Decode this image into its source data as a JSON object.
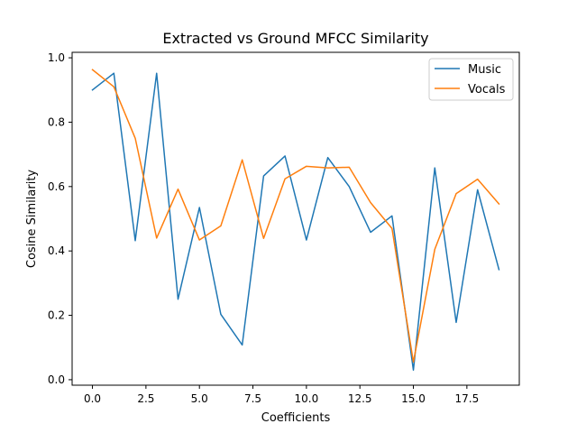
{
  "chart_data": {
    "type": "line",
    "title": "Extracted vs Ground MFCC Similarity",
    "xlabel": "Coefficients",
    "ylabel": "Cosine Similarity",
    "xlim": [
      -0.95,
      19.95
    ],
    "ylim": [
      -0.017,
      1.017
    ],
    "xticks": [
      0,
      2.5,
      5,
      7.5,
      10,
      12.5,
      15,
      17.5
    ],
    "xtick_labels": [
      "0.0",
      "2.5",
      "5.0",
      "7.5",
      "10.0",
      "12.5",
      "15.0",
      "17.5"
    ],
    "yticks": [
      0.0,
      0.2,
      0.4,
      0.6,
      0.8,
      1.0
    ],
    "ytick_labels": [
      "0.0",
      "0.2",
      "0.4",
      "0.6",
      "0.8",
      "1.0"
    ],
    "grid": false,
    "legend_position": "upper right",
    "x": [
      0,
      1,
      2,
      3,
      4,
      5,
      6,
      7,
      8,
      9,
      10,
      11,
      12,
      13,
      14,
      15,
      16,
      17,
      18,
      19
    ],
    "series": [
      {
        "name": "Music",
        "color": "#1f77b4",
        "values": [
          0.9,
          0.952,
          0.432,
          0.952,
          0.25,
          0.535,
          0.203,
          0.108,
          0.633,
          0.695,
          0.434,
          0.69,
          0.6,
          0.458,
          0.509,
          0.03,
          0.658,
          0.178,
          0.59,
          0.342
        ]
      },
      {
        "name": "Vocals",
        "color": "#ff7f0e",
        "values": [
          0.963,
          0.91,
          0.75,
          0.44,
          0.592,
          0.434,
          0.478,
          0.683,
          0.439,
          0.624,
          0.663,
          0.658,
          0.66,
          0.55,
          0.47,
          0.055,
          0.405,
          0.578,
          0.623,
          0.546
        ]
      }
    ]
  }
}
